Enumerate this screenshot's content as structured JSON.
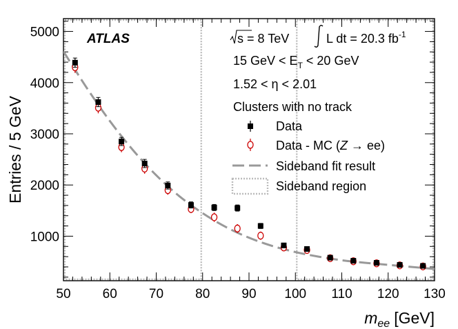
{
  "chart_data": {
    "type": "scatter",
    "experiment_label": "ATLAS",
    "xlabel": "m_ee [GeV]",
    "xlabel_main": "m",
    "xlabel_sub": "ee",
    "xlabel_unit": "[GeV]",
    "ylabel": "Entries / 5 GeV",
    "xlim": [
      50,
      130
    ],
    "ylim": [
      130,
      5250
    ],
    "xticks": [
      50,
      60,
      70,
      80,
      90,
      100,
      110,
      120,
      130
    ],
    "yticks": [
      1000,
      2000,
      3000,
      4000,
      5000
    ],
    "annotations": {
      "energy": "s = 8 TeV",
      "lumi": "L dt = 20.3 fb",
      "lumi_exp": "-1",
      "et_left": "15 GeV < E",
      "et_sub": "T",
      "et_right": " < 20 GeV",
      "eta": "1.52 < η < 2.01",
      "selection": "Clusters with no track"
    },
    "sideband_regions": [
      [
        50,
        80
      ],
      [
        100,
        130
      ]
    ],
    "series": [
      {
        "name": "Data",
        "marker": "square",
        "color": "#000000",
        "x": [
          52.5,
          57.5,
          62.5,
          67.5,
          72.5,
          77.5,
          82.5,
          87.5,
          92.5,
          97.5,
          102.5,
          107.5,
          112.5,
          117.5,
          122.5,
          127.5
        ],
        "y": [
          4390,
          3620,
          2850,
          2420,
          1990,
          1610,
          1560,
          1550,
          1200,
          820,
          750,
          580,
          520,
          480,
          440,
          420
        ],
        "err": [
          90,
          90,
          80,
          80,
          70,
          60,
          60,
          60,
          50,
          45,
          45,
          35,
          35,
          30,
          30,
          30
        ]
      },
      {
        "name": "Data - MC (Z → ee)",
        "marker": "open-circle",
        "color": "#cc0000",
        "x": [
          52.5,
          57.5,
          62.5,
          67.5,
          72.5,
          77.5,
          82.5,
          87.5,
          92.5,
          97.5,
          102.5,
          107.5,
          112.5,
          117.5,
          122.5,
          127.5
        ],
        "y": [
          4300,
          3510,
          2740,
          2320,
          1900,
          1530,
          1370,
          1150,
          1010,
          780,
          730,
          570,
          510,
          470,
          430,
          410
        ],
        "err": [
          110,
          110,
          100,
          100,
          90,
          80,
          90,
          85,
          80,
          55,
          50,
          40,
          40,
          35,
          35,
          35
        ]
      },
      {
        "name": "Sideband fit result",
        "type": "line",
        "style": "dashed",
        "color": "#999999",
        "x": [
          50,
          55,
          60,
          65,
          70,
          75,
          80,
          85,
          90,
          95,
          100,
          105,
          110,
          115,
          120,
          125,
          130
        ],
        "y": [
          4610,
          3900,
          3250,
          2680,
          2190,
          1780,
          1450,
          1180,
          970,
          810,
          690,
          600,
          530,
          480,
          440,
          400,
          360
        ]
      }
    ],
    "legend": {
      "position": "top-right",
      "entries": [
        "Data",
        "Data - MC (",
        "Z",
        " → ee)",
        "Sideband fit result",
        "Sideband region"
      ]
    }
  }
}
